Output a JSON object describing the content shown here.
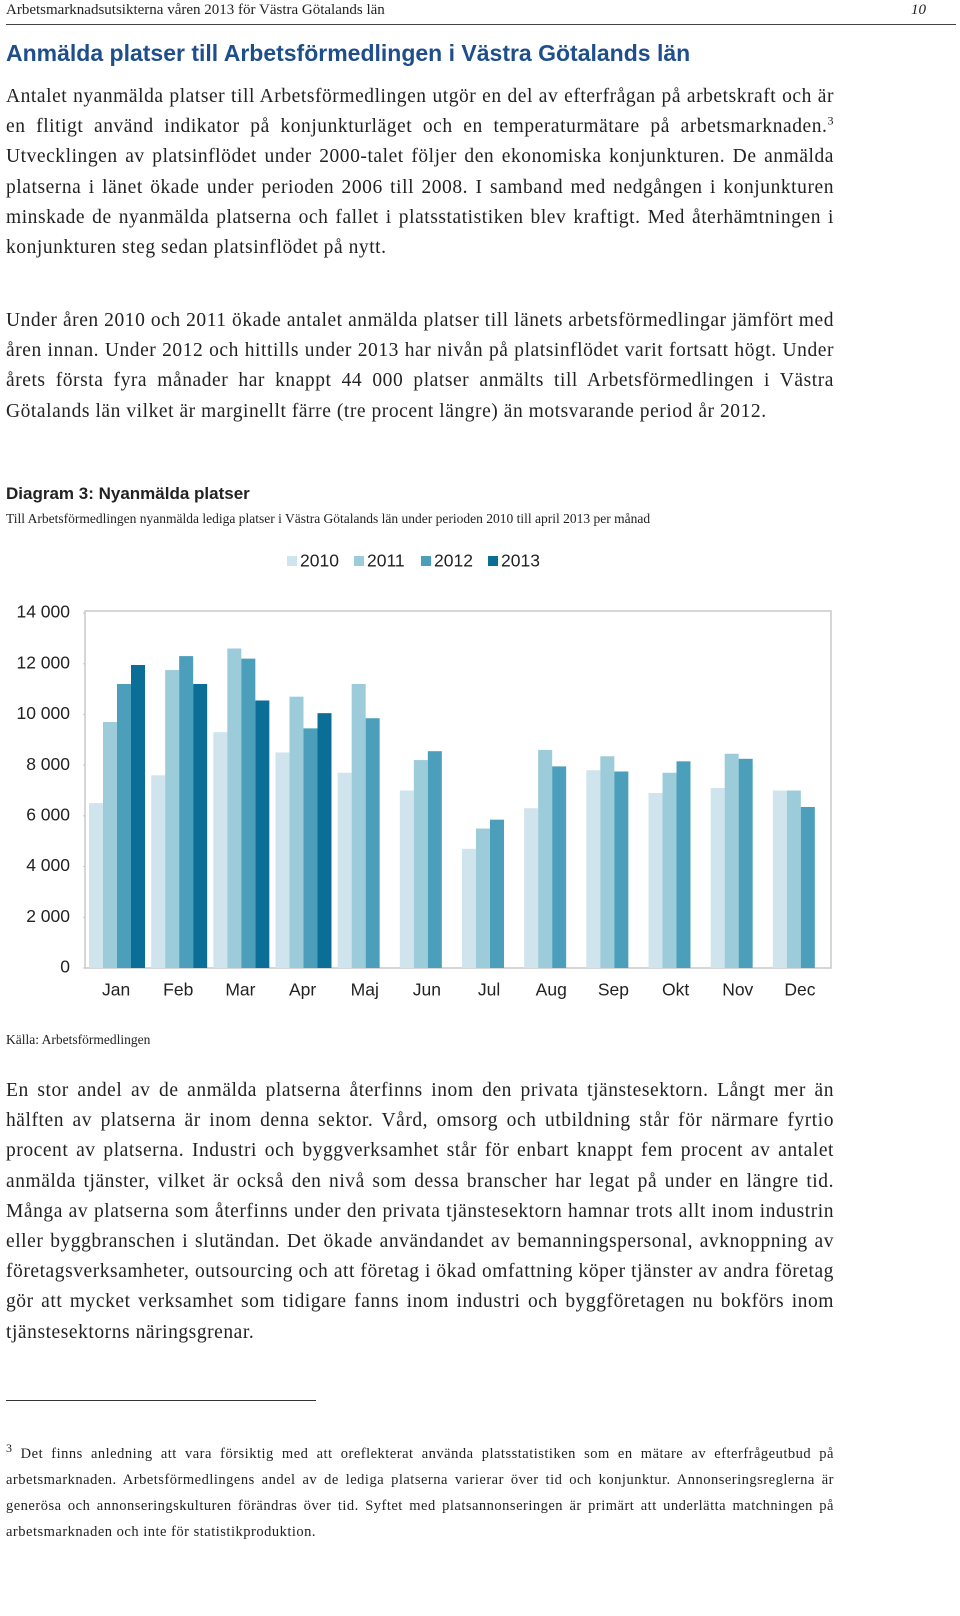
{
  "header": {
    "title": "Arbetsmarknadsutsikterna våren 2013 för Västra Götalands län",
    "page": "10"
  },
  "heading": "Anmälda platser till Arbetsförmedlingen i Västra Götalands län",
  "paragraphs": [
    {
      "before": "Antalet nyanmälda platser till Arbetsförmedlingen utgör en del av efterfrågan på arbetskraft och är en flitigt använd indikator på konjunkturläget och en temperaturmätare på arbetsmarknaden.",
      "note": "3",
      "after": " Utvecklingen av platsinflödet under 2000-talet följer den ekonomiska konjunkturen. De anmälda platserna i länet ökade under perioden 2006 till 2008. I samband med nedgången i konjunkturen minskade de nyanmälda platserna och fallet i platsstatistiken blev kraftigt. Med återhämtningen i konjunkturen steg sedan platsinflödet på nytt."
    },
    {
      "text": "Under åren 2010 och 2011 ökade antalet anmälda platser till länets arbetsförmedlingar jämfört med åren innan. Under 2012 och hittills under 2013 har nivån på platsinflödet varit fortsatt högt. Under årets första fyra månader har knappt 44 000 platser anmälts till Arbetsförmedlingen i Västra Götalands län vilket är marginellt färre (tre procent längre) än motsvarande period år 2012."
    },
    {
      "text": "En stor andel av de anmälda platserna återfinns inom den privata tjänstesektorn. Långt mer än hälften av platserna är inom denna sektor. Vård, omsorg och utbildning står för närmare fyrtio procent av platserna. Industri och byggverksamhet står för enbart knappt fem procent av antalet anmälda tjänster, vilket är också den nivå som dessa branscher har legat på under en längre tid. Många av platserna som återfinns under den privata tjänstesektorn hamnar trots allt inom industrin eller byggbranschen i slutändan. Det ökade användandet av bemanningspersonal, avknoppning av företagsverksamheter, outsourcing och att företag i ökad omfattning köper tjänster av andra företag gör att mycket verksamhet som tidigare fanns inom industri och byggföretagen nu bokförs inom tjänstesektorns näringsgrenar."
    }
  ],
  "chart_data": {
    "type": "bar",
    "title": "Diagram 3: Nyanmälda platser",
    "subtitle": "Till Arbetsförmedlingen nyanmälda lediga platser i Västra Götalands län under perioden 2010 till april 2013 per månad",
    "categories": [
      "Jan",
      "Feb",
      "Mar",
      "Apr",
      "Maj",
      "Jun",
      "Jul",
      "Aug",
      "Sep",
      "Okt",
      "Nov",
      "Dec"
    ],
    "series": [
      {
        "name": "2010",
        "color": "#cfe4ec",
        "values": [
          6500,
          7600,
          9300,
          8500,
          7700,
          7000,
          4700,
          6300,
          7800,
          6900,
          7100,
          7000
        ]
      },
      {
        "name": "2011",
        "color": "#9ccbd9",
        "values": [
          9700,
          11750,
          12600,
          10700,
          11200,
          8200,
          5500,
          8600,
          8350,
          7700,
          8450,
          7000
        ]
      },
      {
        "name": "2012",
        "color": "#4b9fba",
        "values": [
          11200,
          12300,
          12200,
          9450,
          9850,
          8550,
          5850,
          7950,
          7750,
          8150,
          8250,
          6350
        ]
      },
      {
        "name": "2013",
        "color": "#0b6e96",
        "values": [
          11950,
          11200,
          10550,
          10050,
          null,
          null,
          null,
          null,
          null,
          null,
          null,
          null
        ]
      }
    ],
    "ylim": [
      0,
      14000
    ],
    "yticks": [
      {
        "value": 0,
        "label": "0"
      },
      {
        "value": 2000,
        "label": "2 000"
      },
      {
        "value": 4000,
        "label": "4 000"
      },
      {
        "value": 6000,
        "label": "6 000"
      },
      {
        "value": 8000,
        "label": "8 000"
      },
      {
        "value": 10000,
        "label": "10 000"
      },
      {
        "value": 12000,
        "label": "12 000"
      },
      {
        "value": 14000,
        "label": "14 000"
      }
    ],
    "grid": false,
    "legend": "top",
    "source": "Källa: Arbetsförmedlingen"
  },
  "footnote": {
    "note": "3",
    "text": " Det finns anledning att vara försiktig med att oreflekterat använda platsstatistiken som en mätare av efterfrågeutbud på arbetsmarknaden. Arbetsförmedlingens andel av de lediga platserna varierar över tid och konjunktur. Annonseringsreglerna är generösa och annonseringskulturen förändras över tid. Syftet med platsannonseringen är primärt att underlätta matchningen på arbetsmarknaden och inte för statistikproduktion."
  }
}
